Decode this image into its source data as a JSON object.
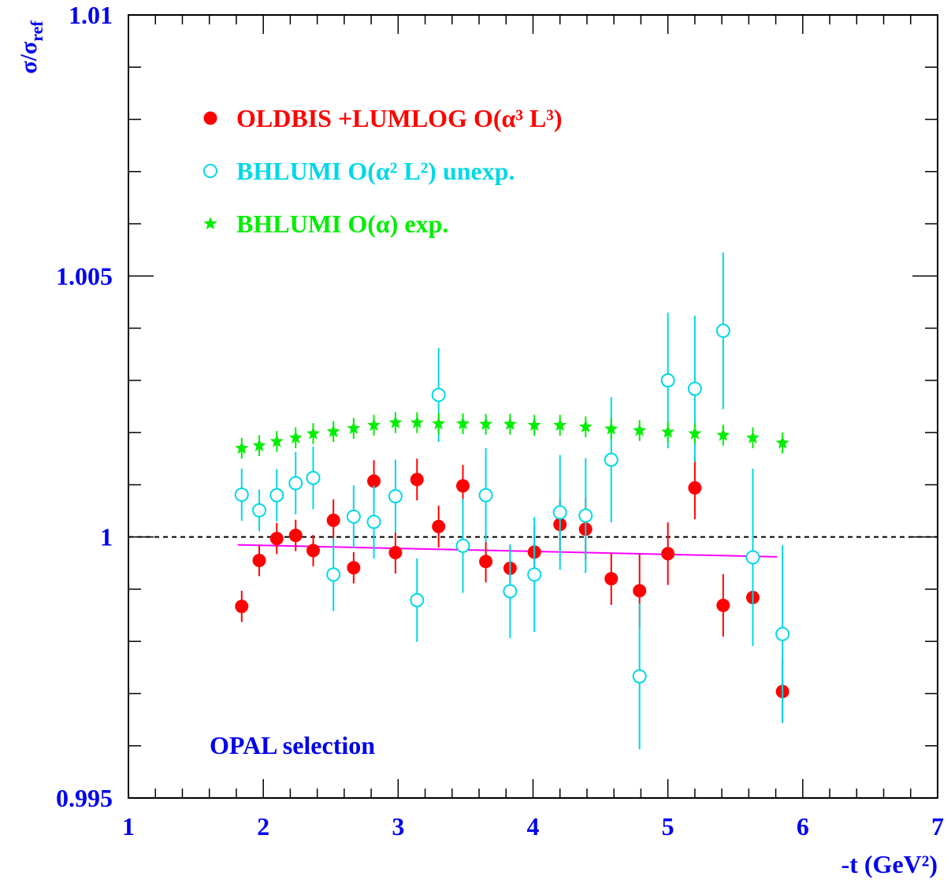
{
  "chart_data": {
    "type": "scatter",
    "y_label": {
      "main": "σ/σ",
      "sub": "ref"
    },
    "x_label": "-t (GeV²)",
    "annotation": "OPAL selection",
    "xlim": [
      1,
      7
    ],
    "xticks": [
      1,
      2,
      3,
      4,
      5,
      6,
      7
    ],
    "ylim": [
      0.995,
      1.01
    ],
    "yticks": [
      0.995,
      1,
      1.005,
      1.01
    ],
    "x": [
      1.84,
      1.97,
      2.1,
      2.24,
      2.37,
      2.52,
      2.67,
      2.82,
      2.98,
      3.14,
      3.3,
      3.48,
      3.65,
      3.83,
      4.01,
      4.2,
      4.39,
      4.58,
      4.79,
      5.0,
      5.2,
      5.41,
      5.63,
      5.85
    ],
    "series": [
      {
        "name": "OLDBIS +LUMLOG  O(α³ L³)",
        "color": "#ff0000",
        "marker": "filled-circle",
        "values": [
          0.99867,
          0.99955,
          0.99997,
          1.00003,
          0.99974,
          1.00032,
          0.99941,
          1.00107,
          0.9997,
          1.0011,
          1.0002,
          1.00098,
          0.99953,
          0.9994,
          0.99971,
          1.00024,
          1.00015,
          0.9992,
          0.99897,
          0.99968,
          1.00094,
          0.99869,
          0.99884,
          0.99704
        ],
        "errors": [
          0.0003,
          0.0003,
          0.0003,
          0.0003,
          0.0003,
          0.0004,
          0.0003,
          0.0004,
          0.0004,
          0.0004,
          0.0004,
          0.0004,
          0.0004,
          0.0004,
          0.0005,
          0.0005,
          0.0006,
          0.0005,
          0.0007,
          0.0006,
          0.0006,
          0.0006,
          0.0007,
          0.0006
        ]
      },
      {
        "name": "BHLUMI  O(α² L²) unexp.",
        "color": "#00d8e6",
        "marker": "open-circle",
        "values": [
          1.00081,
          1.00051,
          1.0008,
          1.00103,
          1.00113,
          0.99928,
          1.00039,
          1.00029,
          1.00078,
          0.99879,
          1.00272,
          0.99983,
          1.0008,
          0.99896,
          0.99928,
          1.00047,
          1.00041,
          1.00148,
          0.99733,
          1.003,
          1.00284,
          1.00395,
          0.99961,
          0.99814
        ],
        "errors": [
          0.0005,
          0.0004,
          0.0005,
          0.0006,
          0.0006,
          0.0007,
          0.0006,
          0.0007,
          0.0007,
          0.0008,
          0.0009,
          0.0009,
          0.0009,
          0.0009,
          0.0011,
          0.0011,
          0.0011,
          0.0012,
          0.0014,
          0.0013,
          0.0014,
          0.0015,
          0.0017,
          0.0017
        ]
      },
      {
        "name": "BHLUMI  O(α) exp.",
        "color": "#00ee00",
        "marker": "star",
        "values": [
          1.0017,
          1.00175,
          1.00183,
          1.0019,
          1.00198,
          1.00202,
          1.00208,
          1.00214,
          1.00219,
          1.00219,
          1.00217,
          1.00217,
          1.00216,
          1.00216,
          1.00214,
          1.00214,
          1.00211,
          1.00207,
          1.00204,
          1.00201,
          1.00198,
          1.00195,
          1.0019,
          1.0018
        ],
        "errors": [
          0.0002,
          0.0002,
          0.0002,
          0.0002,
          0.0002,
          0.0002,
          0.0002,
          0.0002,
          0.0002,
          0.0002,
          0.0002,
          0.0002,
          0.0002,
          0.0002,
          0.0002,
          0.0002,
          0.0002,
          0.0002,
          0.0002,
          0.0002,
          0.0002,
          0.0002,
          0.0002,
          0.0002
        ]
      }
    ],
    "fit": {
      "x": [
        1.81,
        5.81
      ],
      "values": [
        0.99985,
        0.99962
      ],
      "color": "#ff00ff"
    },
    "reference_line": {
      "value": 1,
      "color": "#000000",
      "dashed": true
    }
  }
}
